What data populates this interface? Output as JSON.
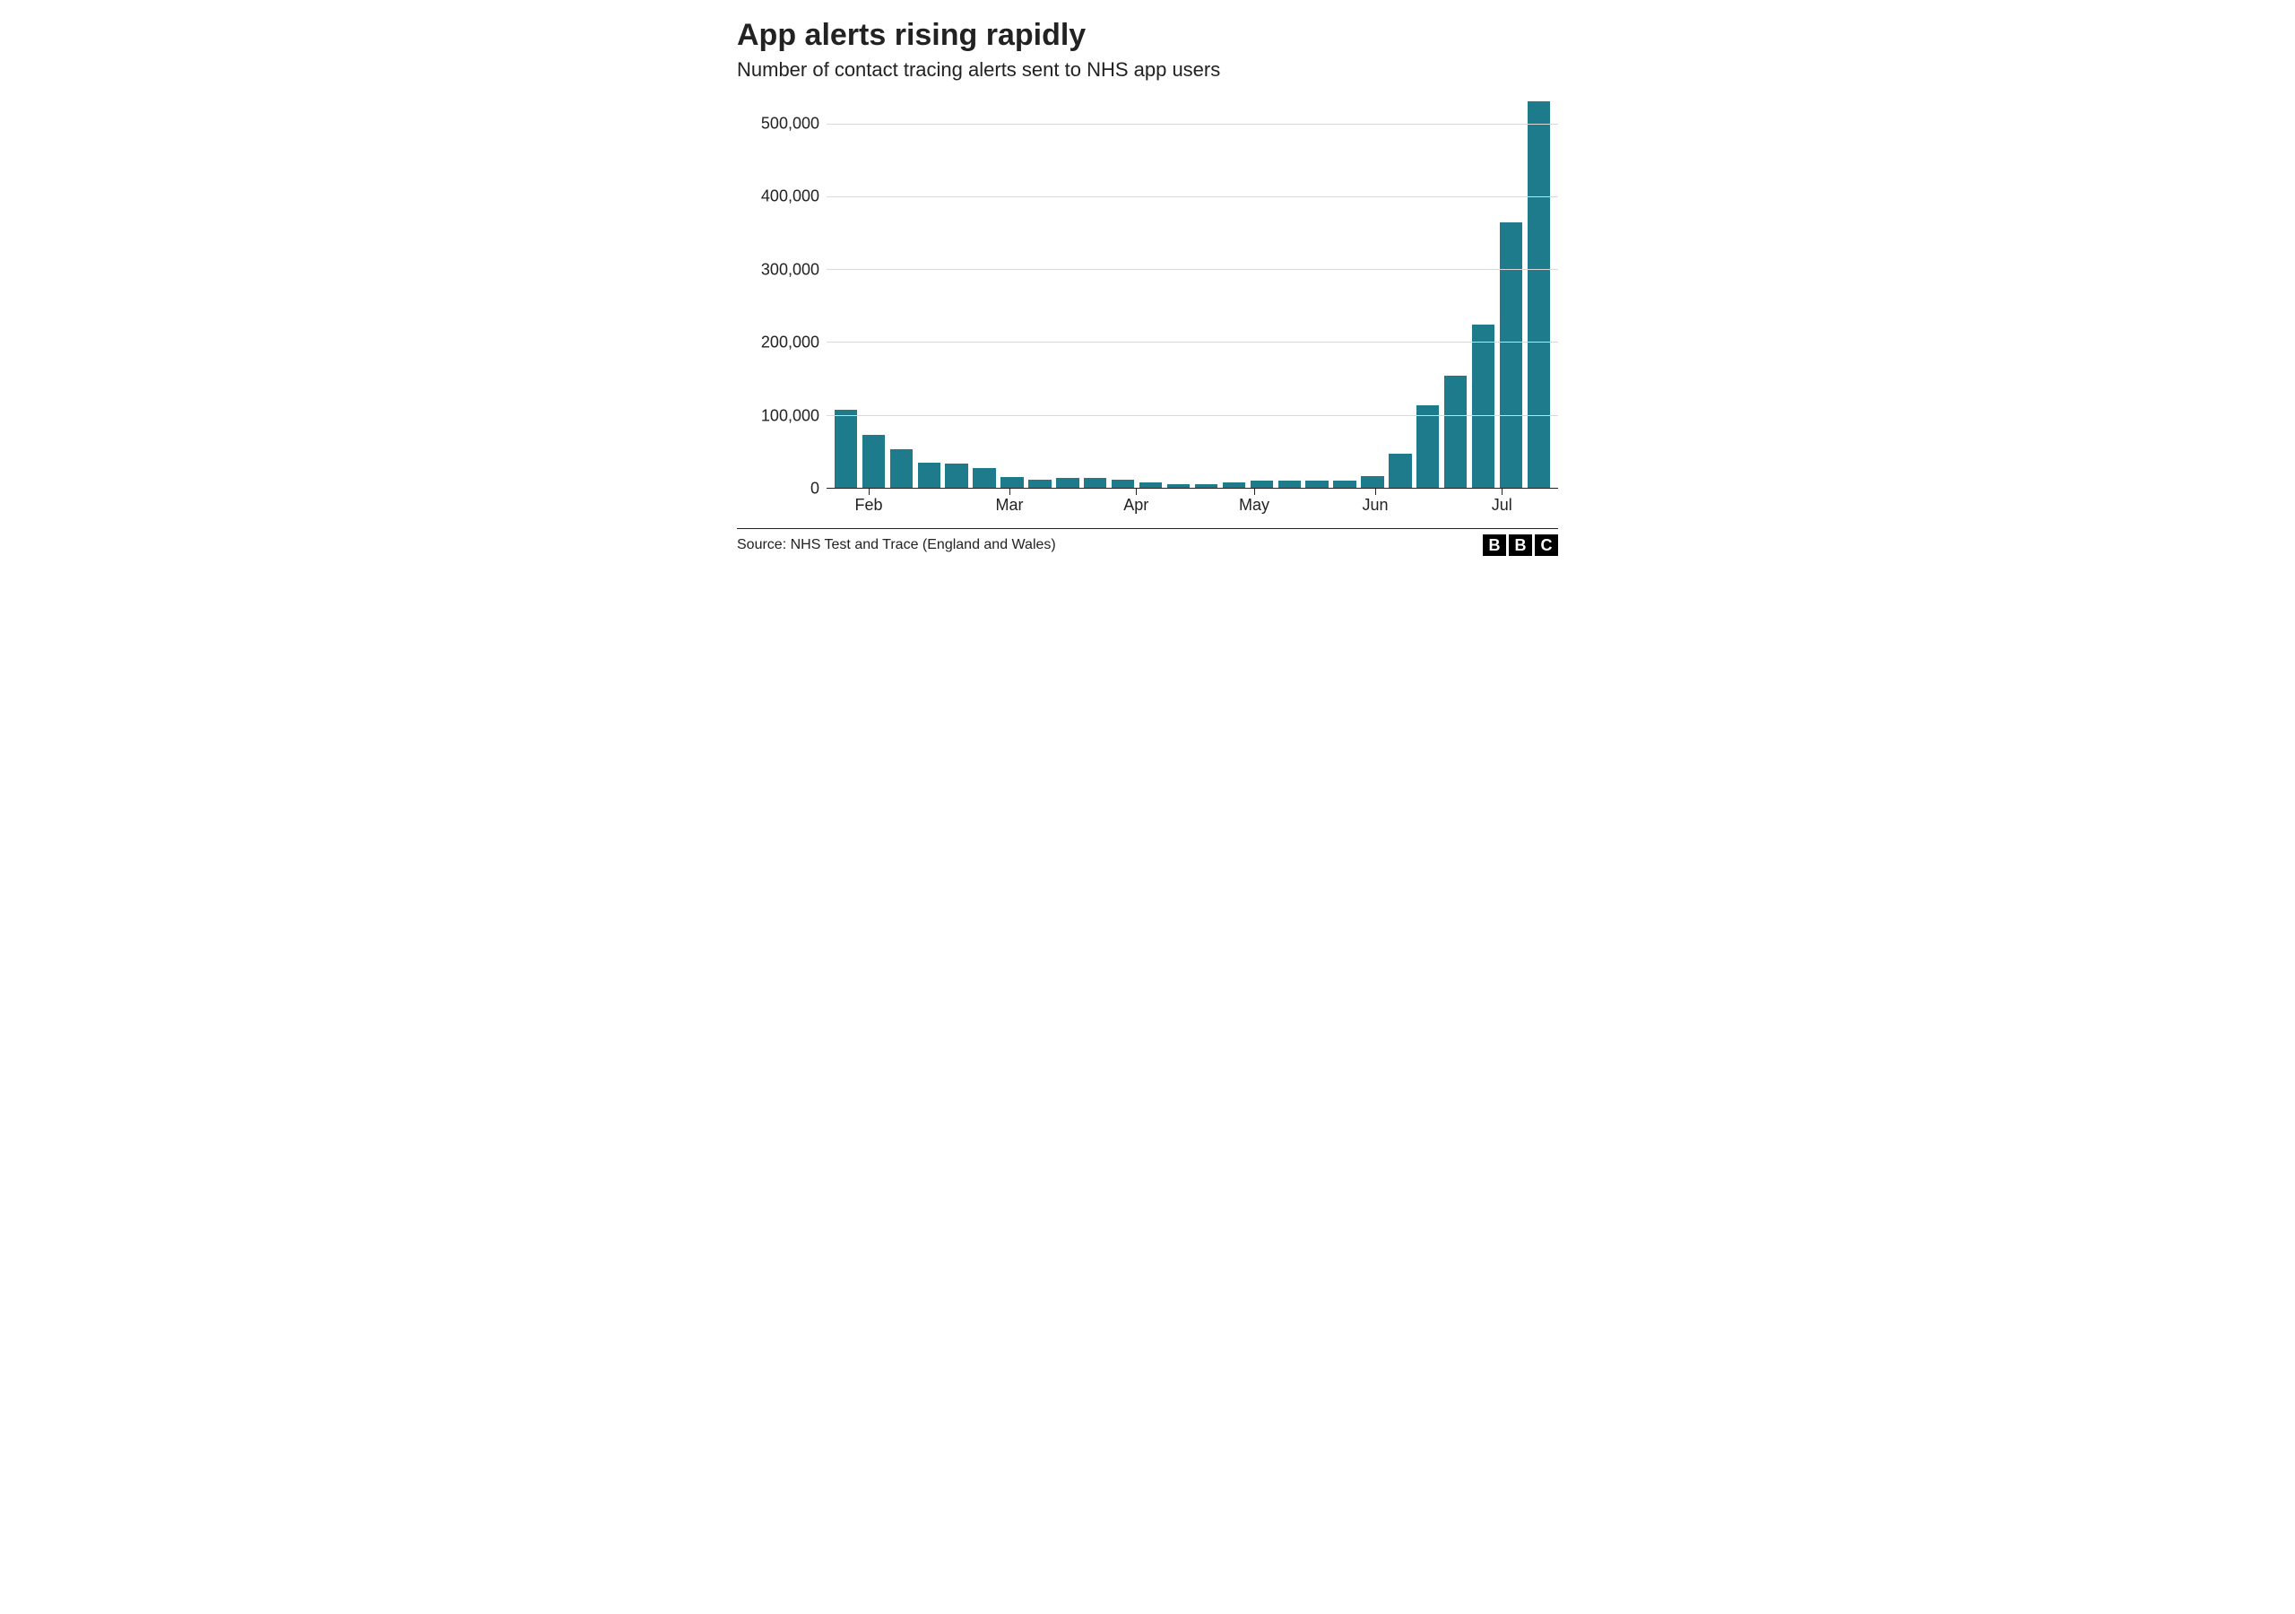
{
  "title": "App alerts rising rapidly",
  "subtitle": "Number of contact tracing alerts sent to NHS app users",
  "source": "Source: NHS Test and Trace (England and Wales)",
  "logo_letters": [
    "B",
    "B",
    "C"
  ],
  "chart": {
    "type": "bar",
    "bar_color": "#1e7b8c",
    "background_color": "#ffffff",
    "grid_color": "#d9d9d9",
    "axis_color": "#222222",
    "title_fontsize": 34,
    "subtitle_fontsize": 22,
    "tick_fontsize": 18,
    "bar_width_ratio": 0.82,
    "ylim": [
      0,
      540000
    ],
    "yticks": [
      0,
      100000,
      200000,
      300000,
      400000,
      500000
    ],
    "ytick_labels": [
      "0",
      "100,000",
      "200,000",
      "300,000",
      "400,000",
      "500,000"
    ],
    "values": [
      107000,
      73000,
      53000,
      35000,
      33000,
      27000,
      15000,
      11000,
      13000,
      13000,
      11000,
      7000,
      5000,
      5000,
      8000,
      10000,
      10000,
      10000,
      10000,
      16000,
      47000,
      113000,
      154000,
      224000,
      364000,
      530000
    ],
    "x_labels": [
      {
        "pos_index": 1.0,
        "text": "Feb"
      },
      {
        "pos_index": 6.0,
        "text": "Mar"
      },
      {
        "pos_index": 10.5,
        "text": "Apr"
      },
      {
        "pos_index": 14.7,
        "text": "May"
      },
      {
        "pos_index": 19.0,
        "text": "Jun"
      },
      {
        "pos_index": 23.5,
        "text": "Jul"
      }
    ]
  }
}
